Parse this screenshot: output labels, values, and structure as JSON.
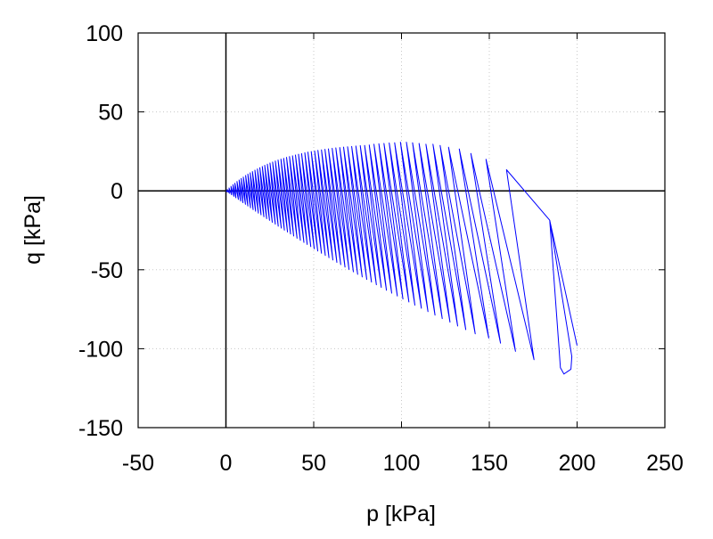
{
  "chart_data": {
    "type": "line",
    "title": "",
    "xlabel": "p [kPa]",
    "ylabel": "q [kPa]",
    "xlim": [
      -50,
      250
    ],
    "ylim": [
      -150,
      100
    ],
    "xticks": [
      -50,
      0,
      50,
      100,
      150,
      200,
      250
    ],
    "yticks": [
      -150,
      -100,
      -50,
      0,
      50,
      100
    ],
    "grid": true,
    "zero_axes": true,
    "line_color": "#0000ff",
    "series": [
      {
        "points": [
          [
            200,
            -98
          ],
          [
            184.4,
            -18.6
          ],
          [
            190.5,
            -112
          ],
          [
            192.5,
            -116
          ],
          [
            196.5,
            -113
          ],
          [
            197,
            -105
          ],
          [
            184.4,
            -18.6
          ],
          [
            159.8,
            13.4
          ],
          [
            175.5,
            -107
          ],
          [
            148.1,
            20
          ],
          [
            164.9,
            -101.7
          ],
          [
            139.5,
            23.7
          ],
          [
            156.4,
            -96.5
          ],
          [
            132.9,
            26.5
          ],
          [
            149.7,
            -93.3
          ],
          [
            126.8,
            27.6
          ],
          [
            142,
            -90.6
          ],
          [
            122,
            28.8
          ],
          [
            136.6,
            -87.9
          ],
          [
            117.9,
            29.5
          ],
          [
            132,
            -85.6
          ],
          [
            113.9,
            29.5
          ],
          [
            127.6,
            -83.2
          ],
          [
            110,
            30
          ],
          [
            123.2,
            -80.9
          ],
          [
            106.3,
            30.5
          ],
          [
            119.1,
            -78.7
          ],
          [
            102.8,
            30.8
          ],
          [
            115.1,
            -76.5
          ],
          [
            99.4,
            30.8
          ],
          [
            111.3,
            -74.4
          ],
          [
            96.1,
            30.5
          ],
          [
            107.6,
            -72.4
          ],
          [
            93,
            30.3
          ],
          [
            104.2,
            -70.4
          ],
          [
            90,
            30
          ],
          [
            100.8,
            -68.5
          ],
          [
            87.1,
            29.8
          ],
          [
            97.6,
            -66.6
          ],
          [
            84.3,
            29.5
          ],
          [
            94.4,
            -64.8
          ],
          [
            81.6,
            29
          ],
          [
            91.4,
            -63
          ],
          [
            79,
            28.8
          ],
          [
            88.5,
            -61.2
          ],
          [
            76.5,
            28.6
          ],
          [
            85.7,
            -59.5
          ],
          [
            74,
            28.4
          ],
          [
            82.9,
            -57.8
          ],
          [
            71.6,
            28.1
          ],
          [
            80.2,
            -56.1
          ],
          [
            69.3,
            27.9
          ],
          [
            77.6,
            -54.5
          ],
          [
            67,
            27.7
          ],
          [
            75,
            -52.9
          ],
          [
            64.8,
            27.4
          ],
          [
            72.6,
            -51.3
          ],
          [
            62.6,
            27.2
          ],
          [
            70.1,
            -49.8
          ],
          [
            60.5,
            26.9
          ],
          [
            67.8,
            -48.3
          ],
          [
            58.4,
            26.6
          ],
          [
            65.4,
            -46.7
          ],
          [
            56.4,
            26.3
          ],
          [
            63.2,
            -45.3
          ],
          [
            54.4,
            25.9
          ],
          [
            60.9,
            -43.8
          ],
          [
            52.4,
            25.6
          ],
          [
            58.7,
            -42.3
          ],
          [
            50.5,
            25.2
          ],
          [
            56.6,
            -40.9
          ],
          [
            48.6,
            24.9
          ],
          [
            54.4,
            -39.5
          ],
          [
            46.7,
            24.5
          ],
          [
            52.3,
            -38.1
          ],
          [
            44.9,
            24.1
          ],
          [
            50.3,
            -36.7
          ],
          [
            43.1,
            23.6
          ],
          [
            48.3,
            -35.3
          ],
          [
            41.3,
            23.2
          ],
          [
            46.3,
            -34
          ],
          [
            39.6,
            22.7
          ],
          [
            44.4,
            -32.7
          ],
          [
            37.9,
            22.2
          ],
          [
            42.4,
            -31.3
          ],
          [
            36.2,
            21.7
          ],
          [
            40.5,
            -30
          ],
          [
            34.5,
            21.2
          ],
          [
            38.6,
            -28.6
          ],
          [
            32.9,
            20.6
          ],
          [
            36.8,
            -27.3
          ],
          [
            31.3,
            20.1
          ],
          [
            35.1,
            -26.1
          ],
          [
            29.7,
            19.5
          ],
          [
            33.3,
            -24.9
          ],
          [
            28.1,
            18.9
          ],
          [
            31.5,
            -23.6
          ],
          [
            26.6,
            18.2
          ],
          [
            29.8,
            -22.4
          ],
          [
            25.1,
            17.6
          ],
          [
            28.1,
            -21.1
          ],
          [
            23.6,
            16.9
          ],
          [
            26.4,
            -19.9
          ],
          [
            22.1,
            16.2
          ],
          [
            24.8,
            -18.7
          ],
          [
            20.7,
            15.4
          ],
          [
            23.2,
            -17.6
          ],
          [
            19.3,
            14.7
          ],
          [
            21.6,
            -16.4
          ],
          [
            17.9,
            13.9
          ],
          [
            20,
            -15.2
          ],
          [
            16.5,
            13.1
          ],
          [
            18.5,
            -14.1
          ],
          [
            15.1,
            12.2
          ],
          [
            16.9,
            -12.9
          ],
          [
            13.8,
            11.4
          ],
          [
            15.5,
            -11.9
          ],
          [
            12.5,
            10.6
          ],
          [
            14,
            -10.7
          ],
          [
            11.2,
            9.7
          ],
          [
            12.5,
            -9.6
          ],
          [
            9.9,
            8.7
          ],
          [
            11.1,
            -8.5
          ],
          [
            8.7,
            7.8
          ],
          [
            9.7,
            -7.5
          ],
          [
            7.5,
            6.9
          ],
          [
            8.4,
            -6.5
          ],
          [
            6.3,
            5.9
          ],
          [
            7.1,
            -5.5
          ],
          [
            5.1,
            4.8
          ],
          [
            5.7,
            -4.4
          ],
          [
            4,
            3.9
          ],
          [
            4.5,
            -3.5
          ],
          [
            2.9,
            2.9
          ],
          [
            3.2,
            -2.5
          ],
          [
            1.8,
            1.8
          ],
          [
            2,
            -1.6
          ],
          [
            0.8,
            0.8
          ],
          [
            0.9,
            -0.7
          ],
          [
            0,
            0
          ]
        ]
      }
    ]
  }
}
